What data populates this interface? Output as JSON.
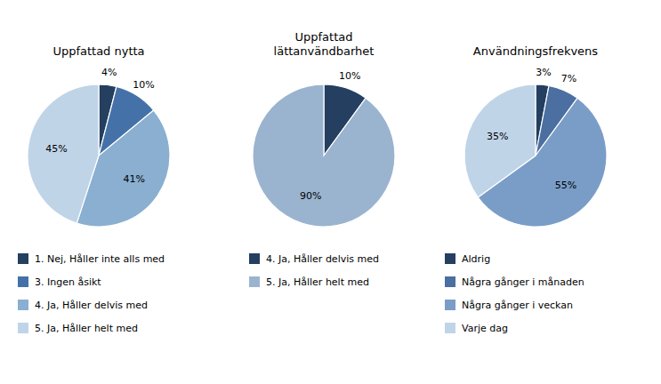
{
  "chart_data": [
    {
      "type": "pie",
      "title": "Uppfattad nytta",
      "categories": [
        "1. Nej, Håller inte alls med",
        "3. Ingen åsikt",
        "4. Ja, Håller delvis med",
        "5. Ja, Håller helt med"
      ],
      "values": [
        4,
        10,
        41,
        45
      ],
      "value_labels": [
        "4%",
        "10%",
        "41%",
        "45%"
      ],
      "colors": [
        "#243F60",
        "#4472A8",
        "#8AAFD0",
        "#C0D4E8"
      ],
      "data_labels": true,
      "legend": "bottom"
    },
    {
      "type": "pie",
      "title": "Uppfattad\nlättanvändbarhet",
      "categories": [
        "4. Ja, Håller delvis med",
        "5. Ja, Håller helt med"
      ],
      "values": [
        10,
        90
      ],
      "value_labels": [
        "10%",
        "90%"
      ],
      "colors": [
        "#243F60",
        "#9AB4CF"
      ],
      "data_labels": true,
      "legend": "bottom"
    },
    {
      "type": "pie",
      "title": "Användningsfrekvens",
      "categories": [
        "Aldrig",
        "Några gånger i månaden",
        "Några gånger i veckan",
        "Varje dag"
      ],
      "values": [
        3,
        7,
        55,
        35
      ],
      "value_labels": [
        "3%",
        "7%",
        "55%",
        "35%"
      ],
      "colors": [
        "#243F60",
        "#4A6FA0",
        "#7A9DC8",
        "#C0D4E8"
      ],
      "data_labels": true,
      "legend": "bottom"
    }
  ]
}
